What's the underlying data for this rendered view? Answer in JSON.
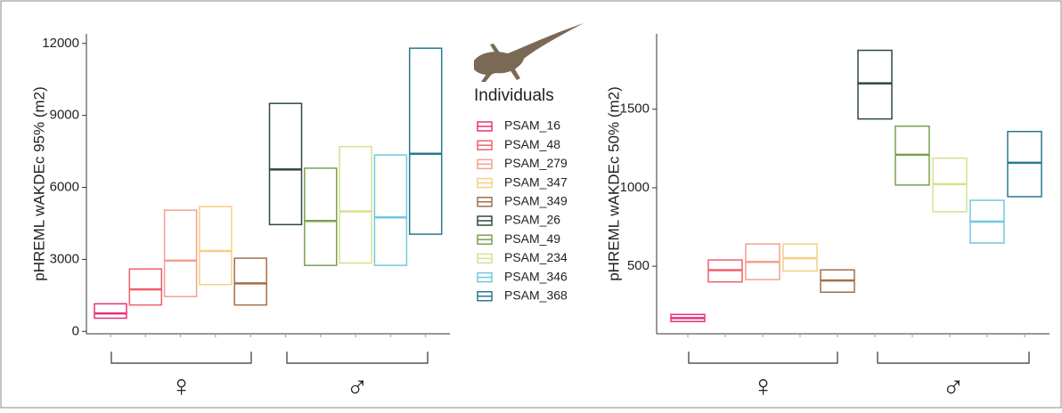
{
  "legend": {
    "title": "Individuals",
    "entries": [
      {
        "name": "PSAM_16",
        "color": "#e8317a"
      },
      {
        "name": "PSAM_48",
        "color": "#f0606a"
      },
      {
        "name": "PSAM_279",
        "color": "#f4a090"
      },
      {
        "name": "PSAM_347",
        "color": "#f6cf84"
      },
      {
        "name": "PSAM_349",
        "color": "#a0704a"
      },
      {
        "name": "PSAM_26",
        "color": "#2e4a3a"
      },
      {
        "name": "PSAM_49",
        "color": "#7aa050"
      },
      {
        "name": "PSAM_234",
        "color": "#d8e08e"
      },
      {
        "name": "PSAM_346",
        "color": "#70c8e0"
      },
      {
        "name": "PSAM_368",
        "color": "#2a7890"
      }
    ]
  },
  "chart_data": [
    {
      "type": "crossbar",
      "y_label": "pHREML wAKDEc 95% (m2)",
      "low": [
        550,
        1100,
        1450,
        1950,
        1100,
        4450,
        2750,
        2850,
        2750,
        4050
      ],
      "values": [
        750,
        1750,
        2950,
        3350,
        2000,
        6750,
        4600,
        5000,
        4750,
        7400
      ],
      "high": [
        1150,
        2600,
        5050,
        5200,
        3050,
        9500,
        6800,
        7700,
        7350,
        11800
      ],
      "ylim": [
        -100,
        12400
      ],
      "yticks": [
        0,
        3000,
        6000,
        9000,
        12000
      ],
      "group_labels": [
        "♀",
        "♂"
      ]
    },
    {
      "type": "crossbar",
      "y_label": "pHREML wAKDEc 50% (m2)",
      "low": [
        148,
        400,
        415,
        470,
        335,
        1438,
        1017,
        847,
        648,
        943
      ],
      "values": [
        170,
        475,
        528,
        551,
        409,
        1665,
        1210,
        1023,
        784,
        1159
      ],
      "high": [
        193,
        540,
        642,
        642,
        477,
        1875,
        1392,
        1188,
        920,
        1358
      ],
      "ylim": [
        70,
        1980
      ],
      "yticks": [
        500,
        1000,
        1500
      ],
      "group_labels": [
        "♀",
        "♂"
      ]
    }
  ]
}
